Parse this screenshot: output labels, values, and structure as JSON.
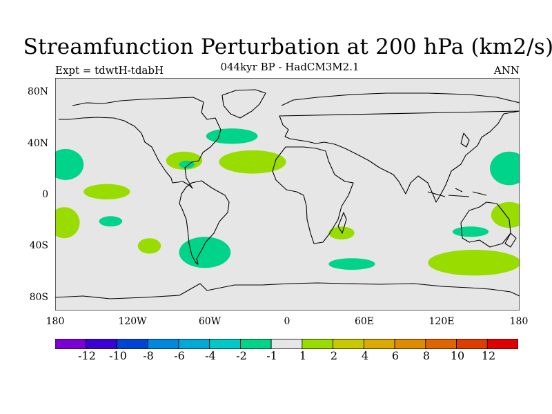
{
  "header": {
    "title": "Streamfunction Perturbation at 200 hPa (km2/s)",
    "experiment": "Expt = tdwtH-tdabH",
    "subtitle": "044kyr BP - HadCM3M2.1",
    "season": "ANN"
  },
  "axes": {
    "lat_ticks": [
      "80N",
      "40N",
      "0",
      "40S",
      "80S"
    ],
    "lon_ticks": [
      "180",
      "120W",
      "60W",
      "0",
      "60E",
      "120E",
      "180"
    ]
  },
  "colors": {
    "ocean_background": "#e6e6e6",
    "contour_line": "#000000",
    "light_green_fill": "#99dd00",
    "teal_fill": "#00d38a"
  },
  "colorbar": {
    "colors": [
      "#7a00d6",
      "#3a00d6",
      "#0044d6",
      "#0088e0",
      "#00aad8",
      "#00c8c8",
      "#00d38a",
      "#e6e6e6",
      "#99dd00",
      "#c8c800",
      "#dcaa00",
      "#e08a00",
      "#e06400",
      "#e03c00",
      "#e00000"
    ],
    "labels": [
      "-12",
      "-10",
      "-8",
      "-6",
      "-4",
      "-2",
      "-1",
      "1",
      "2",
      "4",
      "6",
      "8",
      "10",
      "12"
    ]
  },
  "chart_data": {
    "type": "map",
    "projection": "cylindrical-equidistant",
    "variable": "Streamfunction Perturbation at 200 hPa (km2/s)",
    "lon_range": [
      -180,
      180
    ],
    "lat_range": [
      -90,
      90
    ],
    "anomaly_regions": [
      {
        "name": "north-atlantic-negative",
        "lon": -43,
        "lat": 45,
        "rx": 20,
        "ry": 6,
        "level": "-2 to -1",
        "color": "#00d38a"
      },
      {
        "name": "north-atlantic-positive",
        "lon": -27,
        "lat": 25,
        "rx": 26,
        "ry": 9,
        "level": "1 to 2",
        "color": "#99dd00"
      },
      {
        "name": "caribbean-positive",
        "lon": -80,
        "lat": 26,
        "rx": 14,
        "ry": 7,
        "level": "1 to 2",
        "color": "#99dd00"
      },
      {
        "name": "caribbean-negative",
        "lon": -78,
        "lat": 23,
        "rx": 6,
        "ry": 3,
        "level": "-2 to -1",
        "color": "#00d38a"
      },
      {
        "name": "east-pacific-positive",
        "lon": -140,
        "lat": 2,
        "rx": 18,
        "ry": 6,
        "level": "1 to 2",
        "color": "#99dd00"
      },
      {
        "name": "central-pacific-negative",
        "lon": -137,
        "lat": -21,
        "rx": 9,
        "ry": 4,
        "level": "-2 to -1",
        "color": "#00d38a"
      },
      {
        "name": "west-dateline-north-negative",
        "lon": -172,
        "lat": 23,
        "rx": 14,
        "ry": 12,
        "level": "-2 to -1",
        "color": "#00d38a"
      },
      {
        "name": "west-dateline-south-positive",
        "lon": -173,
        "lat": -22,
        "rx": 12,
        "ry": 12,
        "level": "1 to 2",
        "color": "#99dd00"
      },
      {
        "name": "southeast-pacific-positive",
        "lon": -107,
        "lat": -40,
        "rx": 9,
        "ry": 6,
        "level": "1 to 2",
        "color": "#99dd00"
      },
      {
        "name": "south-america-negative",
        "lon": -64,
        "lat": -45,
        "rx": 20,
        "ry": 12,
        "level": "-2 to -1",
        "color": "#00d38a"
      },
      {
        "name": "south-indian-positive",
        "lon": 42,
        "lat": -30,
        "rx": 10,
        "ry": 5,
        "level": "1 to 2",
        "color": "#99dd00"
      },
      {
        "name": "south-indian-negative",
        "lon": 50,
        "lat": -54,
        "rx": 18,
        "ry": 4.5,
        "level": "-2 to -1",
        "color": "#00d38a"
      },
      {
        "name": "australia-negative",
        "lon": 142,
        "lat": -29,
        "rx": 14,
        "ry": 4,
        "level": "-2 to -1",
        "color": "#00d38a"
      },
      {
        "name": "southern-ocean-positive",
        "lon": 145,
        "lat": -53,
        "rx": 36,
        "ry": 10,
        "level": "1 to 2",
        "color": "#99dd00"
      },
      {
        "name": "east-dateline-north-negative",
        "lon": 172,
        "lat": 20,
        "rx": 15,
        "ry": 13,
        "level": "-2 to -1",
        "color": "#00d38a"
      },
      {
        "name": "east-dateline-south-positive",
        "lon": 172,
        "lat": -16,
        "rx": 14,
        "ry": 10,
        "level": "1 to 2",
        "color": "#99dd00"
      }
    ]
  }
}
